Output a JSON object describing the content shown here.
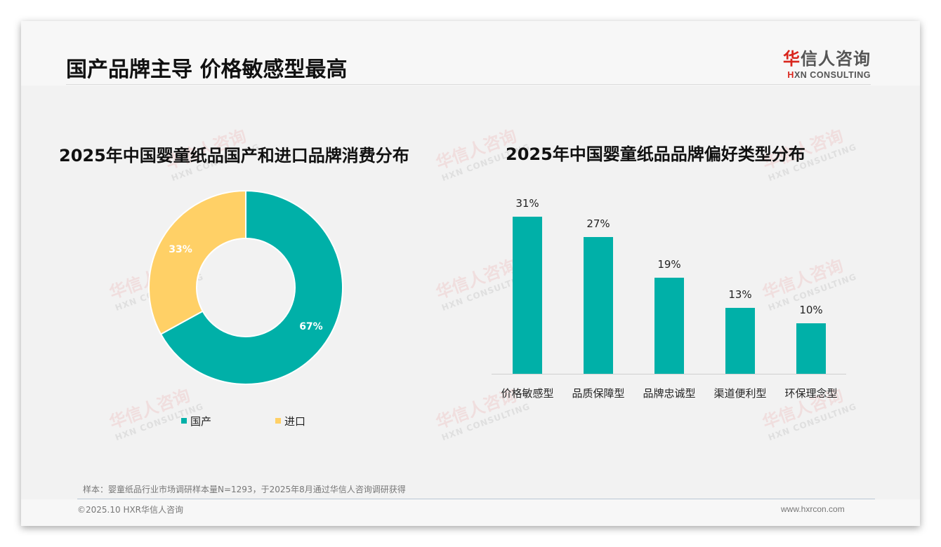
{
  "header": {
    "title": "国产品牌主导 价格敏感型最高",
    "logo_cn_first": "华",
    "logo_cn_rest": "信人咨询",
    "logo_en_first": "H",
    "logo_en_rest": "XN CONSULTING"
  },
  "watermark": {
    "cn": "华信人咨询",
    "en": "HXN CONSULTING"
  },
  "colors": {
    "domestic": "#00b0a8",
    "imported": "#ffd066",
    "logo_red": "#d9251c"
  },
  "left_chart": {
    "title": "2025年中国婴童纸品国产和进口品牌消费分布",
    "legend": [
      {
        "label": "国产",
        "color": "#00b0a8"
      },
      {
        "label": "进口",
        "color": "#ffd066"
      }
    ]
  },
  "right_chart": {
    "title": "2025年中国婴童纸品品牌偏好类型分布"
  },
  "chart_data": [
    {
      "type": "pie",
      "variant": "donut",
      "title": "2025年中国婴童纸品国产和进口品牌消费分布",
      "categories": [
        "国产",
        "进口"
      ],
      "values": [
        67,
        33
      ],
      "labels": [
        "67%",
        "33%"
      ],
      "colors": [
        "#00b0a8",
        "#ffd066"
      ],
      "legend_position": "bottom"
    },
    {
      "type": "bar",
      "title": "2025年中国婴童纸品品牌偏好类型分布",
      "categories": [
        "价格敏感型",
        "品质保障型",
        "品牌忠诚型",
        "渠道便利型",
        "环保理念型"
      ],
      "values": [
        31,
        27,
        19,
        13,
        10
      ],
      "labels": [
        "31%",
        "27%",
        "19%",
        "13%",
        "10%"
      ],
      "color": "#00b0a8",
      "xlabel": "",
      "ylabel": "",
      "unit": "%",
      "grid": false,
      "ylim": [
        0,
        31
      ]
    }
  ],
  "footer": {
    "note": "样本：婴童纸品行业市场调研样本量N=1293，于2025年8月通过华信人咨询调研获得",
    "copyright": "©2025.10 HXR华信人咨询",
    "url": "www.hxrcon.com"
  }
}
